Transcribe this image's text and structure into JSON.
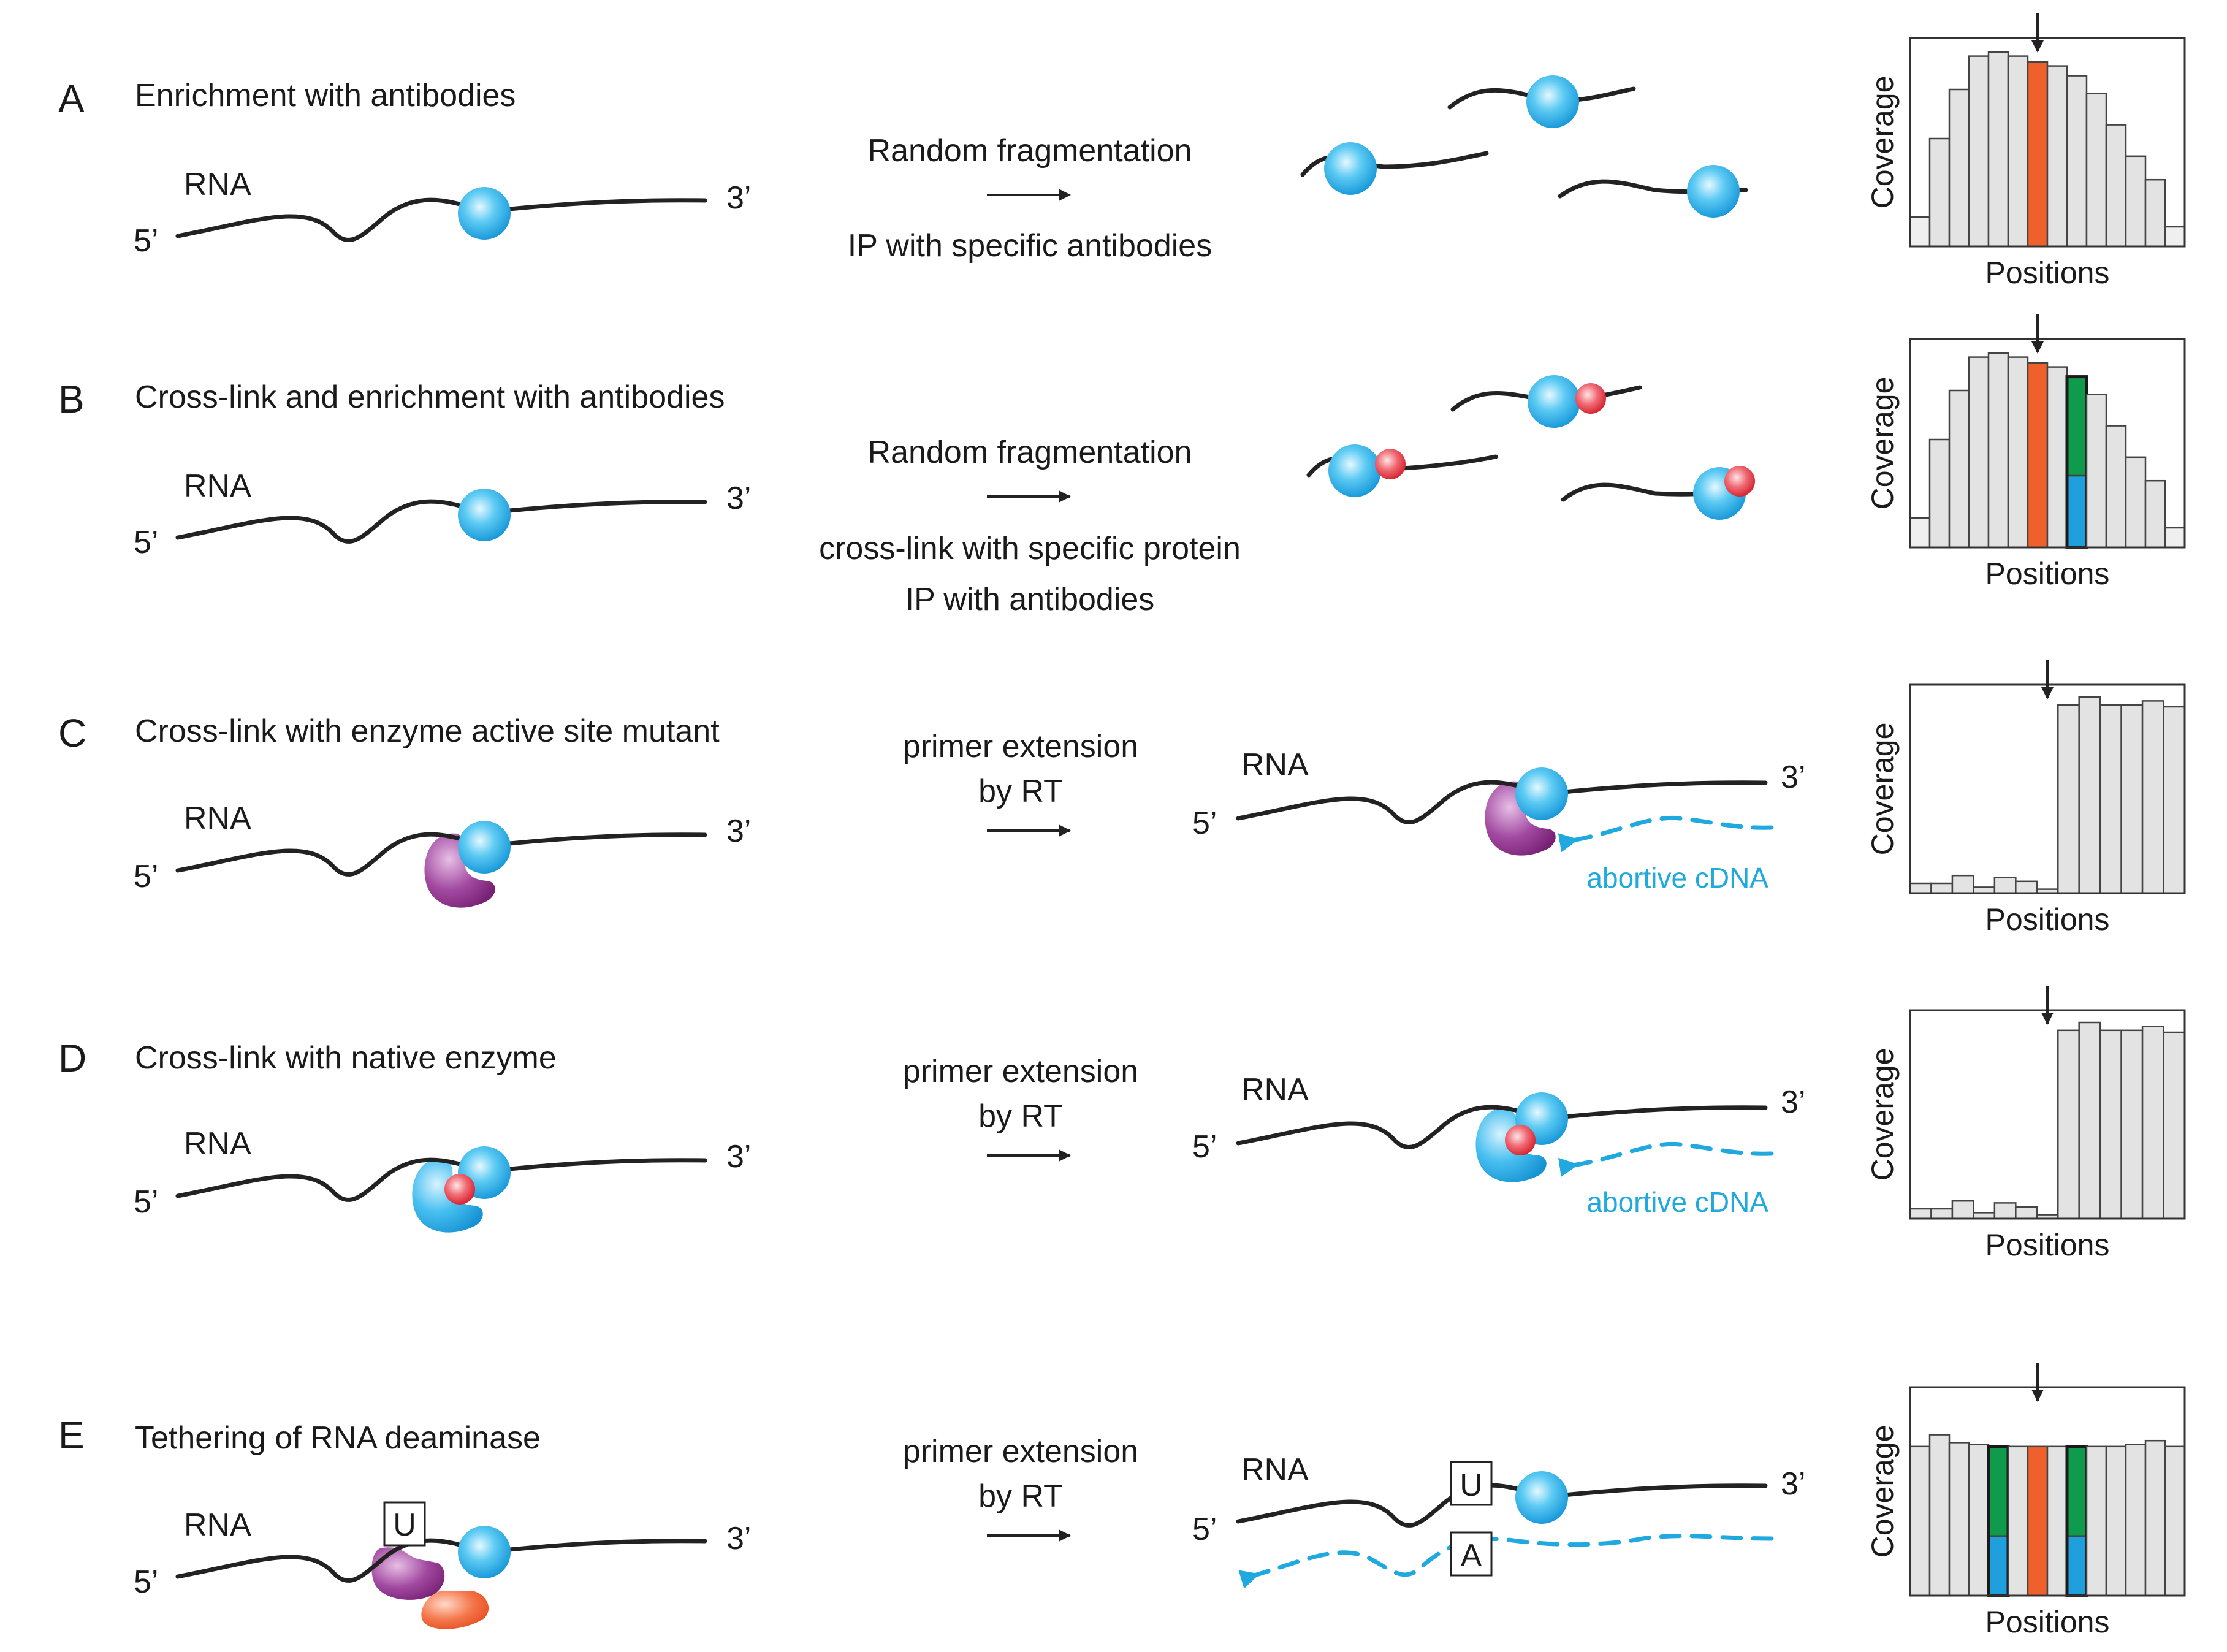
{
  "colors": {
    "protein": "#1ea9e6",
    "modification": "#e83b47",
    "mutant_enzyme": "#8e2f8f",
    "deaminase": "#f0602c",
    "cdna": "#1fa9df",
    "bar_gray": "#e3e3e3",
    "bar_light": "#efefef",
    "highlight_orange": "#f0602c",
    "mismatch_green": "#0f9b4b",
    "mismatch_blue": "#1fa0dc"
  },
  "common": {
    "rna_label": "RNA",
    "five_prime": "5’",
    "three_prime": "3’",
    "coverage_label": "Coverage",
    "positions_label": "Positions",
    "cdna_label": "abortive cDNA"
  },
  "panels": [
    {
      "letter": "A",
      "title": "Enrichment with antibodies",
      "step_lines": [
        "Random fragmentation",
        "IP with specific antibodies"
      ]
    },
    {
      "letter": "B",
      "title": "Cross-link and enrichment with antibodies",
      "step_lines": [
        "Random fragmentation",
        "cross-link with specific protein",
        "IP with antibodies"
      ]
    },
    {
      "letter": "C",
      "title": "Cross-link with enzyme active site mutant",
      "step_lines": [
        "primer extension",
        "by RT"
      ]
    },
    {
      "letter": "D",
      "title": "Cross-link with native enzyme",
      "step_lines": [
        "primer extension",
        "by RT"
      ]
    },
    {
      "letter": "E",
      "title": "Tethering of RNA deaminase",
      "step_lines": [
        "primer extension",
        "by RT"
      ],
      "base_before": "U",
      "base_after": "U",
      "base_cdna": "A"
    }
  ],
  "chart_data": [
    {
      "type": "bar",
      "panel": "A",
      "xlabel": "Positions",
      "ylabel": "Coverage",
      "ylim": [
        0,
        100
      ],
      "marked_position": 7,
      "values": [
        15,
        55,
        80,
        97,
        99,
        97,
        94,
        92,
        87,
        78,
        62,
        46,
        34,
        10
      ],
      "colors": [
        "light",
        "gray",
        "gray",
        "gray",
        "gray",
        "gray",
        "orange",
        "gray",
        "gray",
        "gray",
        "gray",
        "gray",
        "gray",
        "light"
      ]
    },
    {
      "type": "bar",
      "panel": "B",
      "xlabel": "Positions",
      "ylabel": "Coverage",
      "ylim": [
        0,
        100
      ],
      "marked_position": 7,
      "values": [
        15,
        55,
        80,
        97,
        99,
        97,
        94,
        92,
        87,
        78,
        62,
        46,
        34,
        10
      ],
      "colors": [
        "light",
        "gray",
        "gray",
        "gray",
        "gray",
        "gray",
        "orange",
        "gray",
        "split",
        "gray",
        "gray",
        "gray",
        "gray",
        "light"
      ],
      "split_fraction_blue": 0.42
    },
    {
      "type": "bar",
      "panel": "C",
      "xlabel": "Positions",
      "ylabel": "Coverage",
      "ylim": [
        0,
        100
      ],
      "marked_position": 7,
      "values": [
        5,
        5,
        9,
        3,
        8,
        6,
        2,
        96,
        100,
        96,
        96,
        98,
        95
      ],
      "colors": [
        "gray",
        "gray",
        "gray",
        "gray",
        "gray",
        "gray",
        "gray",
        "gray",
        "gray",
        "gray",
        "gray",
        "gray",
        "gray"
      ]
    },
    {
      "type": "bar",
      "panel": "D",
      "xlabel": "Positions",
      "ylabel": "Coverage",
      "ylim": [
        0,
        100
      ],
      "marked_position": 7,
      "values": [
        5,
        5,
        9,
        3,
        8,
        6,
        2,
        96,
        100,
        96,
        96,
        98,
        95
      ],
      "colors": [
        "gray",
        "gray",
        "gray",
        "gray",
        "gray",
        "gray",
        "gray",
        "gray",
        "gray",
        "gray",
        "gray",
        "gray",
        "gray"
      ]
    },
    {
      "type": "bar",
      "panel": "E",
      "xlabel": "Positions",
      "ylabel": "Coverage",
      "ylim": [
        0,
        100
      ],
      "marked_position": 7,
      "values": [
        76,
        82,
        78,
        77,
        76,
        76,
        76,
        76,
        76,
        76,
        76,
        77,
        79,
        76
      ],
      "colors": [
        "gray",
        "gray",
        "gray",
        "gray",
        "split",
        "gray",
        "orange",
        "gray",
        "split",
        "gray",
        "gray",
        "gray",
        "gray",
        "gray"
      ],
      "split_fraction_blue": 0.4
    }
  ]
}
